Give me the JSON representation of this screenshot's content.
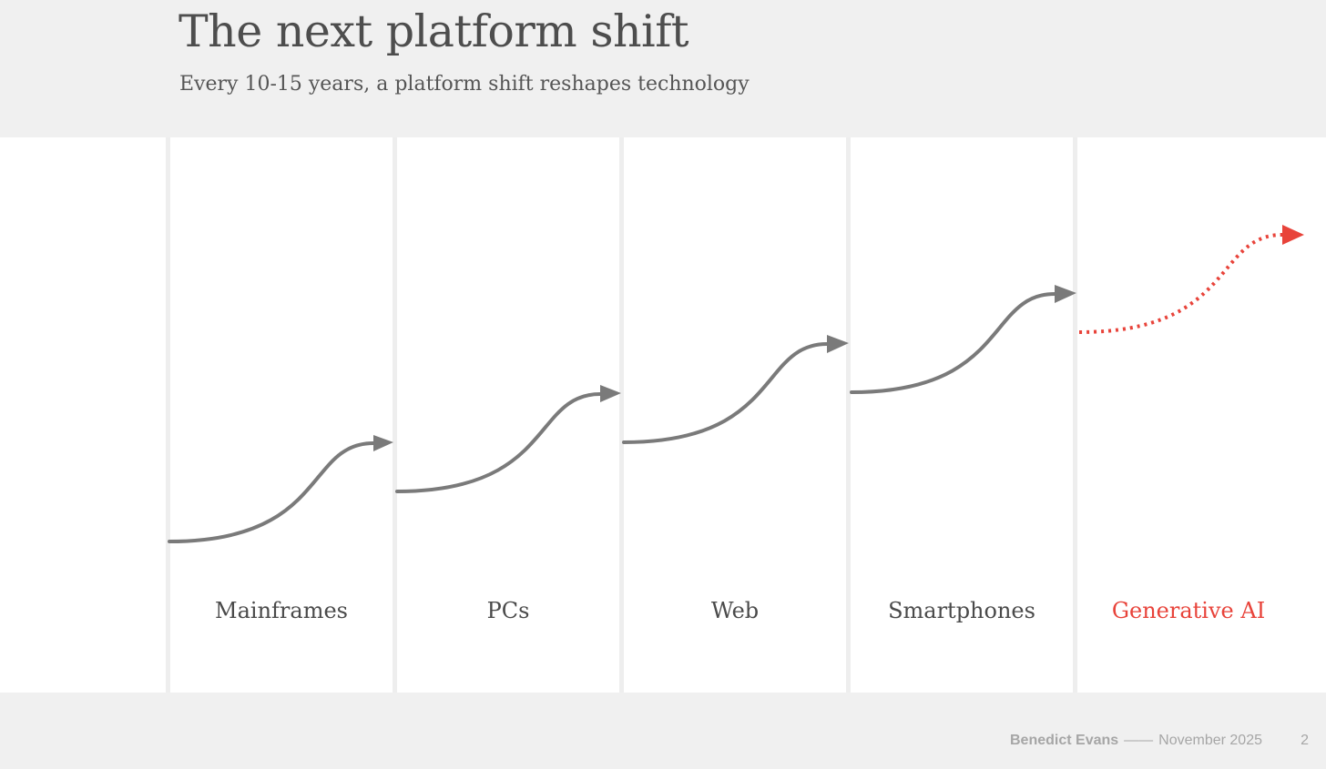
{
  "slide": {
    "title": "The next platform shift",
    "subtitle": "Every 10-15 years, a platform shift reshapes technology"
  },
  "diagram": {
    "platforms": [
      {
        "label": "Mainframes",
        "status": "past"
      },
      {
        "label": "PCs",
        "status": "past"
      },
      {
        "label": "Web",
        "status": "past"
      },
      {
        "label": "Smartphones",
        "status": "past"
      },
      {
        "label": "Generative AI",
        "status": "next"
      }
    ],
    "colors": {
      "past_curve": "#7a7a7a",
      "next_curve": "#e8433a",
      "label": "#4a4a4a",
      "next_label": "#e8433a"
    }
  },
  "footer": {
    "author": "Benedict Evans",
    "separator": "——",
    "date": "November 2025",
    "page_number": "2"
  }
}
